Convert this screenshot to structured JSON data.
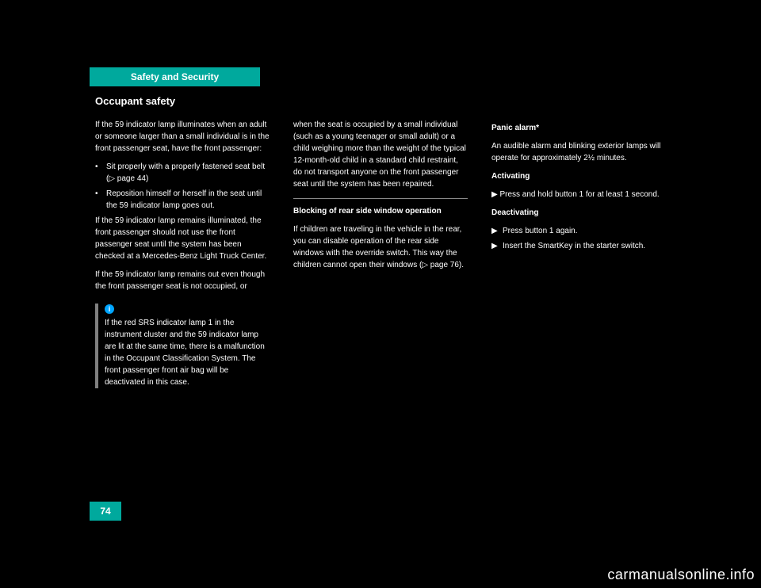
{
  "header": {
    "tab_label": "Safety and Security",
    "tab_bg": "#00a99d",
    "tab_fg": "#ffffff"
  },
  "section_title": "Occupant safety",
  "page_number": "74",
  "watermark": "carmanualsonline.info",
  "col1": {
    "intro": "If the 59 indicator lamp illuminates when an adult or someone larger than a small individual is in the front passenger seat, have the front passenger:",
    "b1": "Sit properly with a properly fastened seat belt (▷ page 44)",
    "b2": "Reposition himself or herself in the seat until the 59 indicator lamp goes out.",
    "outro1": "If the 59 indicator lamp remains illuminated, the front passenger should not use the front passenger seat until the system has been checked at a Mercedes-Benz Light Truck Center.",
    "outro2": "If the 59 indicator lamp remains out even though the front passenger seat is not occupied, or",
    "note": "If the red SRS indicator lamp 1 in the instrument cluster and the 59 indicator lamp are lit at the same time, there is a malfunction in the Occupant Classification System. The front passenger front air bag will be deactivated in this case."
  },
  "col2": {
    "para1": "when the seat is occupied by a small individual (such as a young teenager or small adult) or a child weighing more than the weight of the typical 12-month-old child in a standard child restraint, do not transport anyone on the front passenger seat until the system has been repaired.",
    "subhead": "Blocking of rear side window operation",
    "para2": "If children are traveling in the vehicle in the rear, you can disable operation of the rear side windows with the override switch. This way the children cannot open their windows (▷ page 76)."
  },
  "col3": {
    "head": "Panic alarm*",
    "para1": "An audible alarm and blinking exterior lamps will operate for approximately 2½ minutes.",
    "act_head": "Activating",
    "act_body": "▶ Press and hold button 1 for at least 1 second.",
    "deact_head": "Deactivating",
    "deact_b1": "Press button 1 again.",
    "deact_b2": "Insert the SmartKey in the starter switch."
  }
}
